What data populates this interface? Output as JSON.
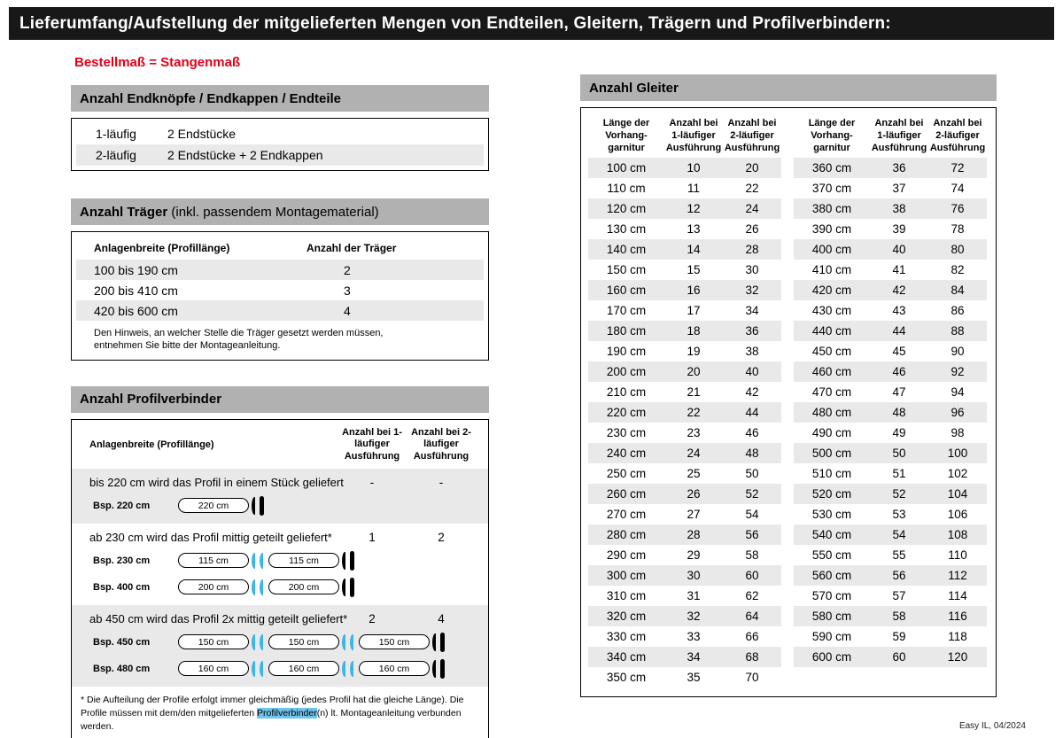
{
  "page": {
    "header": "Lieferumfang/Aufstellung der mitgelieferten Mengen von Endteilen, Gleitern, Trägern und Profilverbindern:",
    "subtitle": "Bestellmaß = Stangenmaß",
    "footer": "Easy IL, 04/2024"
  },
  "colors": {
    "accent_red": "#e2001a",
    "highlight_cyan": "#6ec4ea",
    "connector_cyan": "#3db5e6",
    "section_header_gray": "#b1b1b1",
    "row_stripe_gray": "#e9e9e9",
    "topbar_black": "#181818"
  },
  "endteile": {
    "title": "Anzahl Endknöpfe / Endkappen / Endteile",
    "rows": [
      {
        "label": "1-läufig",
        "value": "2 Endstücke"
      },
      {
        "label": "2-läufig",
        "value": "2 Endstücke + 2 Endkappen"
      }
    ]
  },
  "traeger": {
    "title_bold": "Anzahl Träger",
    "title_rest": " (inkl. passendem Montagematerial)",
    "col1": "Anlagenbreite (Profillänge)",
    "col2": "Anzahl der Träger",
    "rows": [
      {
        "breite": "100 bis 190 cm",
        "anzahl": "2"
      },
      {
        "breite": "200 bis 410 cm",
        "anzahl": "3"
      },
      {
        "breite": "420 bis 600 cm",
        "anzahl": "4"
      }
    ],
    "note": "Den Hinweis, an welcher Stelle die Träger gesetzt werden müssen, entnehmen Sie bitte der Montageanleitung."
  },
  "profilverbinder": {
    "title": "Anzahl Profilverbinder",
    "col1": "Anlagenbreite (Profillänge)",
    "col2": "Anzahl bei 1-läufiger Ausführung",
    "col3": "Anzahl bei 2-läufiger Ausführung",
    "groups": [
      {
        "text": "bis 220 cm wird das Profil in einem Stück geliefert",
        "count1": "-",
        "count2": "-",
        "examples": [
          {
            "label": "Bsp. 220 cm",
            "segments": [
              "220 cm"
            ]
          }
        ]
      },
      {
        "text": "ab 230 cm wird das Profil mittig geteilt geliefert*",
        "count1": "1",
        "count2": "2",
        "examples": [
          {
            "label": "Bsp. 230 cm",
            "segments": [
              "115 cm",
              "115 cm"
            ]
          },
          {
            "label": "Bsp. 400 cm",
            "segments": [
              "200 cm",
              "200 cm"
            ]
          }
        ]
      },
      {
        "text": "ab 450 cm wird das Profil 2x mittig geteilt geliefert*",
        "count1": "2",
        "count2": "4",
        "examples": [
          {
            "label": "Bsp. 450 cm",
            "segments": [
              "150 cm",
              "150 cm",
              "150 cm"
            ]
          },
          {
            "label": "Bsp. 480 cm",
            "segments": [
              "160 cm",
              "160 cm",
              "160 cm"
            ]
          }
        ]
      }
    ],
    "footnote_pre": "* Die Aufteilung der Profile erfolgt immer gleichmäßig (jedes Profil hat die gleiche Länge). Die Profile müssen mit dem/den mitgelieferten ",
    "footnote_highlight": "Profilverbinder",
    "footnote_post": "(n) lt. Montageanleitung verbunden werden."
  },
  "gleiter": {
    "title": "Anzahl Gleiter",
    "columns": [
      "Länge der Vorhang-garnitur",
      "Anzahl bei 1-läufiger Ausführung",
      "Anzahl bei 2-läufiger Ausführung"
    ],
    "tables": [
      {
        "rows": [
          [
            "100 cm",
            "10",
            "20"
          ],
          [
            "110 cm",
            "11",
            "22"
          ],
          [
            "120 cm",
            "12",
            "24"
          ],
          [
            "130 cm",
            "13",
            "26"
          ],
          [
            "140 cm",
            "14",
            "28"
          ],
          [
            "150 cm",
            "15",
            "30"
          ],
          [
            "160 cm",
            "16",
            "32"
          ],
          [
            "170 cm",
            "17",
            "34"
          ],
          [
            "180 cm",
            "18",
            "36"
          ],
          [
            "190 cm",
            "19",
            "38"
          ],
          [
            "200 cm",
            "20",
            "40"
          ],
          [
            "210 cm",
            "21",
            "42"
          ],
          [
            "220 cm",
            "22",
            "44"
          ],
          [
            "230 cm",
            "23",
            "46"
          ],
          [
            "240 cm",
            "24",
            "48"
          ],
          [
            "250 cm",
            "25",
            "50"
          ],
          [
            "260 cm",
            "26",
            "52"
          ],
          [
            "270 cm",
            "27",
            "54"
          ],
          [
            "280 cm",
            "28",
            "56"
          ],
          [
            "290 cm",
            "29",
            "58"
          ],
          [
            "300 cm",
            "30",
            "60"
          ],
          [
            "310 cm",
            "31",
            "62"
          ],
          [
            "320 cm",
            "32",
            "64"
          ],
          [
            "330 cm",
            "33",
            "66"
          ],
          [
            "340 cm",
            "34",
            "68"
          ],
          [
            "350 cm",
            "35",
            "70"
          ]
        ]
      },
      {
        "rows": [
          [
            "360 cm",
            "36",
            "72"
          ],
          [
            "370 cm",
            "37",
            "74"
          ],
          [
            "380 cm",
            "38",
            "76"
          ],
          [
            "390 cm",
            "39",
            "78"
          ],
          [
            "400 cm",
            "40",
            "80"
          ],
          [
            "410 cm",
            "41",
            "82"
          ],
          [
            "420 cm",
            "42",
            "84"
          ],
          [
            "430 cm",
            "43",
            "86"
          ],
          [
            "440 cm",
            "44",
            "88"
          ],
          [
            "450 cm",
            "45",
            "90"
          ],
          [
            "460 cm",
            "46",
            "92"
          ],
          [
            "470 cm",
            "47",
            "94"
          ],
          [
            "480 cm",
            "48",
            "96"
          ],
          [
            "490 cm",
            "49",
            "98"
          ],
          [
            "500 cm",
            "50",
            "100"
          ],
          [
            "510 cm",
            "51",
            "102"
          ],
          [
            "520 cm",
            "52",
            "104"
          ],
          [
            "530 cm",
            "53",
            "106"
          ],
          [
            "540 cm",
            "54",
            "108"
          ],
          [
            "550 cm",
            "55",
            "110"
          ],
          [
            "560 cm",
            "56",
            "112"
          ],
          [
            "570 cm",
            "57",
            "114"
          ],
          [
            "580 cm",
            "58",
            "116"
          ],
          [
            "590 cm",
            "59",
            "118"
          ],
          [
            "600 cm",
            "60",
            "120"
          ]
        ]
      }
    ]
  }
}
